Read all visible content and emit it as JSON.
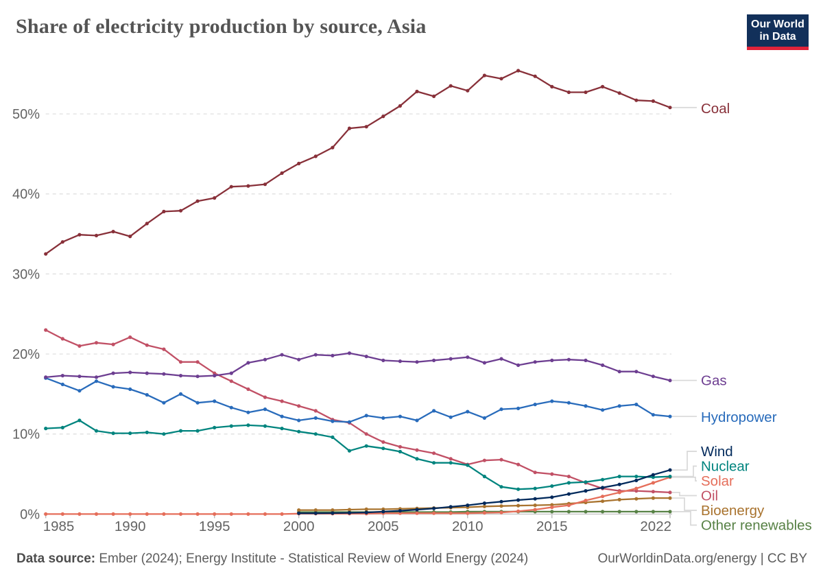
{
  "header": {
    "title": "Share of electricity production by source, Asia",
    "logo": {
      "line1": "Our World",
      "line2": "in Data",
      "bg_color": "#12305a",
      "bar_color": "#e0233a"
    }
  },
  "footer": {
    "source_label": "Data source:",
    "source_text": " Ember (2024); Energy Institute - Statistical Review of World Energy (2024)",
    "attribution": "OurWorldinData.org/energy | CC BY"
  },
  "chart_data": {
    "type": "line",
    "title": "Share of electricity production by source, Asia",
    "xlabel": "",
    "ylabel": "",
    "grid": "horizontal-dashed",
    "legend_position": "right-edge-labels",
    "ylim": [
      0,
      57
    ],
    "y_ticks": [
      0,
      10,
      20,
      30,
      40,
      50
    ],
    "y_tick_labels": [
      "0%",
      "10%",
      "20%",
      "30%",
      "40%",
      "50%"
    ],
    "x_ticks": [
      1985,
      1990,
      1995,
      2000,
      2005,
      2010,
      2015,
      2022
    ],
    "x_tick_labels": [
      "1985",
      "1990",
      "1995",
      "2000",
      "2005",
      "2010",
      "2015",
      "2022"
    ],
    "x": [
      1985,
      1986,
      1987,
      1988,
      1989,
      1990,
      1991,
      1992,
      1993,
      1994,
      1995,
      1996,
      1997,
      1998,
      1999,
      2000,
      2001,
      2002,
      2003,
      2004,
      2005,
      2006,
      2007,
      2008,
      2009,
      2010,
      2011,
      2012,
      2013,
      2014,
      2015,
      2016,
      2017,
      2018,
      2019,
      2020,
      2021,
      2022
    ],
    "series": [
      {
        "name": "Coal",
        "color": "#883039",
        "values": [
          32.5,
          34.0,
          34.9,
          34.8,
          35.3,
          34.7,
          36.3,
          37.8,
          37.9,
          39.1,
          39.5,
          40.9,
          41.0,
          41.2,
          42.6,
          43.8,
          44.7,
          45.8,
          48.2,
          48.4,
          49.7,
          51.0,
          52.8,
          52.2,
          53.5,
          52.9,
          54.8,
          54.4,
          55.4,
          54.7,
          53.4,
          52.7,
          52.7,
          53.4,
          52.6,
          51.7,
          51.6,
          50.8
        ]
      },
      {
        "name": "Gas",
        "color": "#6d3e91",
        "values": [
          17.1,
          17.3,
          17.2,
          17.1,
          17.6,
          17.7,
          17.6,
          17.5,
          17.3,
          17.2,
          17.3,
          17.6,
          18.9,
          19.3,
          19.9,
          19.3,
          19.9,
          19.8,
          20.1,
          19.7,
          19.2,
          19.1,
          19.0,
          19.2,
          19.4,
          19.6,
          18.9,
          19.4,
          18.6,
          19.0,
          19.2,
          19.3,
          19.2,
          18.6,
          17.8,
          17.8,
          17.2,
          16.7
        ]
      },
      {
        "name": "Hydropower",
        "color": "#286bbb",
        "values": [
          17.0,
          16.2,
          15.4,
          16.6,
          15.9,
          15.6,
          14.9,
          13.9,
          15.0,
          13.9,
          14.1,
          13.3,
          12.7,
          13.1,
          12.2,
          11.7,
          12.0,
          11.6,
          11.5,
          12.3,
          12.0,
          12.2,
          11.7,
          12.9,
          12.1,
          12.8,
          12.0,
          13.1,
          13.2,
          13.7,
          14.1,
          13.9,
          13.5,
          13.0,
          13.5,
          13.7,
          12.4,
          12.2
        ]
      },
      {
        "name": "Wind",
        "color": "#00295b",
        "values": [
          null,
          null,
          null,
          null,
          null,
          null,
          null,
          null,
          null,
          null,
          null,
          null,
          null,
          null,
          null,
          0.1,
          0.1,
          0.12,
          0.15,
          0.2,
          0.3,
          0.4,
          0.55,
          0.7,
          0.9,
          1.1,
          1.35,
          1.55,
          1.75,
          1.9,
          2.1,
          2.5,
          2.9,
          3.3,
          3.7,
          4.2,
          4.9,
          5.5
        ]
      },
      {
        "name": "Nuclear",
        "color": "#00847e",
        "values": [
          10.7,
          10.8,
          11.7,
          10.4,
          10.1,
          10.1,
          10.2,
          10.0,
          10.4,
          10.4,
          10.8,
          11.0,
          11.1,
          11.0,
          10.7,
          10.3,
          10.0,
          9.6,
          7.9,
          8.5,
          8.2,
          7.8,
          6.9,
          6.4,
          6.4,
          6.1,
          4.7,
          3.4,
          3.1,
          3.2,
          3.5,
          3.9,
          4.0,
          4.3,
          4.7,
          4.7,
          4.6,
          4.7
        ]
      },
      {
        "name": "Solar",
        "color": "#e56e5a",
        "values": [
          0.0,
          0.0,
          0.0,
          0.0,
          0.0,
          0.0,
          0.0,
          0.0,
          0.0,
          0.0,
          0.0,
          0.0,
          0.0,
          0.0,
          0.0,
          0.05,
          0.05,
          0.05,
          0.05,
          0.05,
          0.1,
          0.1,
          0.1,
          0.1,
          0.1,
          0.1,
          0.15,
          0.2,
          0.35,
          0.55,
          0.85,
          1.1,
          1.7,
          2.2,
          2.7,
          3.2,
          3.9,
          4.6
        ]
      },
      {
        "name": "Oil",
        "color": "#c15065",
        "values": [
          23.0,
          21.9,
          21.0,
          21.4,
          21.2,
          22.1,
          21.1,
          20.6,
          19.0,
          19.0,
          17.6,
          16.6,
          15.6,
          14.6,
          14.1,
          13.5,
          12.9,
          11.8,
          11.4,
          10.0,
          9.0,
          8.4,
          8.0,
          7.6,
          6.9,
          6.2,
          6.7,
          6.8,
          6.2,
          5.2,
          5.0,
          4.7,
          3.9,
          3.2,
          2.9,
          2.9,
          2.8,
          2.7
        ]
      },
      {
        "name": "Bioenergy",
        "color": "#a9732e",
        "values": [
          null,
          null,
          null,
          null,
          null,
          null,
          null,
          null,
          null,
          null,
          null,
          null,
          null,
          null,
          null,
          0.5,
          0.5,
          0.5,
          0.55,
          0.6,
          0.6,
          0.65,
          0.7,
          0.75,
          0.8,
          0.85,
          0.95,
          1.0,
          1.05,
          1.1,
          1.15,
          1.3,
          1.45,
          1.6,
          1.8,
          1.9,
          2.0,
          2.0
        ]
      },
      {
        "name": "Other renewables",
        "color": "#578145",
        "values": [
          null,
          null,
          null,
          null,
          null,
          null,
          null,
          null,
          null,
          null,
          null,
          null,
          null,
          null,
          null,
          0.25,
          0.25,
          0.25,
          0.25,
          0.25,
          0.25,
          0.25,
          0.25,
          0.25,
          0.25,
          0.3,
          0.3,
          0.3,
          0.3,
          0.3,
          0.3,
          0.3,
          0.3,
          0.3,
          0.3,
          0.3,
          0.3,
          0.3
        ]
      }
    ]
  }
}
